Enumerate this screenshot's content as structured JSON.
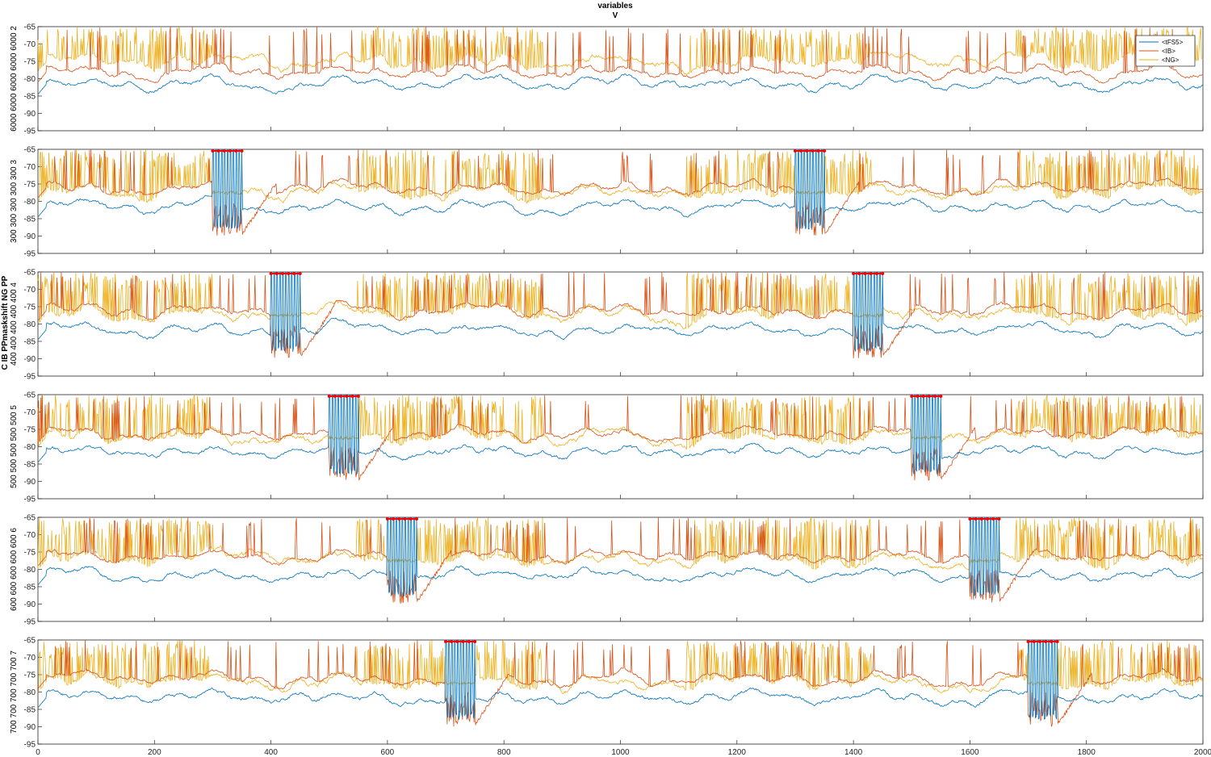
{
  "figure": {
    "title_line1": "variables",
    "title_line2": "V",
    "ylabel": "C IB PPmaskshift NG PP"
  },
  "chart_data": {
    "type": "line",
    "xlim": [
      0,
      2000
    ],
    "xticks": [
      0,
      200,
      400,
      600,
      800,
      1000,
      1200,
      1400,
      1600,
      1800,
      2000
    ],
    "ylim": [
      -95,
      -65
    ],
    "yticks": [
      -95,
      -90,
      -85,
      -80,
      -75,
      -70,
      -65
    ],
    "grid": false,
    "legend": {
      "placement": "top-right",
      "entries": [
        "<tFS5>",
        "<IB>",
        "<NG>"
      ]
    },
    "series_colors": {
      "<tFS5>": "#0072BD",
      "<IB>": "#D95319",
      "<NG>": "#EDB120",
      "markers": "#FF0000"
    },
    "panels": [
      {
        "ylabel": "6000 6000 6000 6000 6000 2",
        "series": [
          {
            "name": "<tFS5>",
            "baseline": -81.5
          },
          {
            "name": "<IB>",
            "baseline": -78
          },
          {
            "name": "<NG>",
            "baseline": -75
          }
        ],
        "marker_intervals": []
      },
      {
        "ylabel": "300 300 300 300 300 3",
        "series": [
          {
            "name": "<tFS5>",
            "baseline": -81.5
          },
          {
            "name": "<IB>",
            "baseline": -76
          },
          {
            "name": "<NG>",
            "baseline": -77
          }
        ],
        "marker_intervals": [
          [
            300,
            350
          ],
          [
            1300,
            1350
          ]
        ]
      },
      {
        "ylabel": "400 400 400 400 400 4",
        "series": [
          {
            "name": "<tFS5>",
            "baseline": -81.5
          },
          {
            "name": "<IB>",
            "baseline": -76
          },
          {
            "name": "<NG>",
            "baseline": -77
          }
        ],
        "marker_intervals": [
          [
            400,
            450
          ],
          [
            1400,
            1450
          ]
        ]
      },
      {
        "ylabel": "500 500 500 500 500 5",
        "series": [
          {
            "name": "<tFS5>",
            "baseline": -81.5
          },
          {
            "name": "<IB>",
            "baseline": -76
          },
          {
            "name": "<NG>",
            "baseline": -77
          }
        ],
        "marker_intervals": [
          [
            500,
            550
          ],
          [
            1500,
            1550
          ]
        ]
      },
      {
        "ylabel": "600 600 600 600 600 6",
        "series": [
          {
            "name": "<tFS5>",
            "baseline": -81.5
          },
          {
            "name": "<IB>",
            "baseline": -76
          },
          {
            "name": "<NG>",
            "baseline": -77
          }
        ],
        "marker_intervals": [
          [
            600,
            650
          ],
          [
            1600,
            1650
          ]
        ]
      },
      {
        "ylabel": "700 700 700 700 700 7",
        "series": [
          {
            "name": "<tFS5>",
            "baseline": -81.5
          },
          {
            "name": "<IB>",
            "baseline": -76
          },
          {
            "name": "<NG>",
            "baseline": -77
          }
        ],
        "marker_intervals": [
          [
            700,
            750
          ],
          [
            1700,
            1750
          ]
        ]
      }
    ]
  }
}
